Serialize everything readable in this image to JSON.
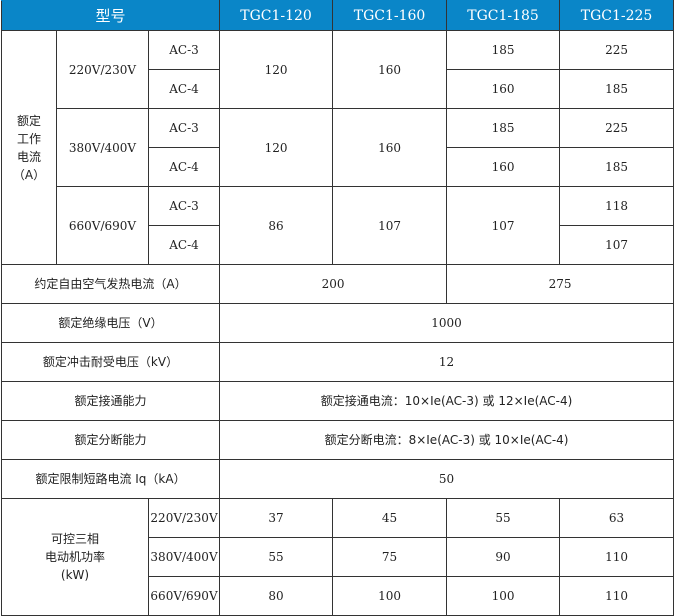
{
  "header": {
    "model_label": "型号",
    "models": [
      "TGC1-120",
      "TGC1-160",
      "TGC1-185",
      "TGC1-225"
    ]
  },
  "rated_current": {
    "label_lines": [
      "额定",
      "工作",
      "电流",
      "（A）"
    ],
    "groups": [
      {
        "voltage": "220V/230V",
        "ac3": "AC-3",
        "ac4": "AC-4",
        "m120": "120",
        "m160": "160",
        "m185_ac3": "185",
        "m185_ac4": "160",
        "m225_ac3": "225",
        "m225_ac4": "185"
      },
      {
        "voltage": "380V/400V",
        "ac3": "AC-3",
        "ac4": "AC-4",
        "m120": "120",
        "m160": "160",
        "m185_ac3": "185",
        "m185_ac4": "160",
        "m225_ac3": "225",
        "m225_ac4": "185"
      },
      {
        "voltage": "660V/690V",
        "ac3": "AC-3",
        "ac4": "AC-4",
        "m120": "86",
        "m160": "107",
        "m185": "107",
        "m225_ac3": "118",
        "m225_ac4": "107"
      }
    ]
  },
  "thermal": {
    "label": "约定自由空气发热电流（A）",
    "v1": "200",
    "v2": "275"
  },
  "insulation": {
    "label": "额定绝缘电压（V）",
    "value": "1000"
  },
  "impulse": {
    "label": "额定冲击耐受电压（kV）",
    "value": "12"
  },
  "making": {
    "label": "额定接通能力",
    "value": "额定接通电流：10×Ie(AC-3) 或 12×Ie(AC-4)"
  },
  "breaking": {
    "label": "额定分断能力",
    "value": "额定分断电流：8×Ie(AC-3) 或 10×Ie(AC-4)"
  },
  "short_circuit": {
    "label": "额定限制短路电流 Iq（kA）",
    "value": "50"
  },
  "motor_power": {
    "label_lines": [
      "可控三相",
      "电动机功率",
      "(kW)"
    ],
    "rows": [
      {
        "voltage": "220V/230V",
        "values": [
          "37",
          "45",
          "55",
          "63"
        ]
      },
      {
        "voltage": "380V/400V",
        "values": [
          "55",
          "75",
          "90",
          "110"
        ]
      },
      {
        "voltage": "660V/690V",
        "values": [
          "80",
          "100",
          "100",
          "110"
        ]
      }
    ]
  }
}
